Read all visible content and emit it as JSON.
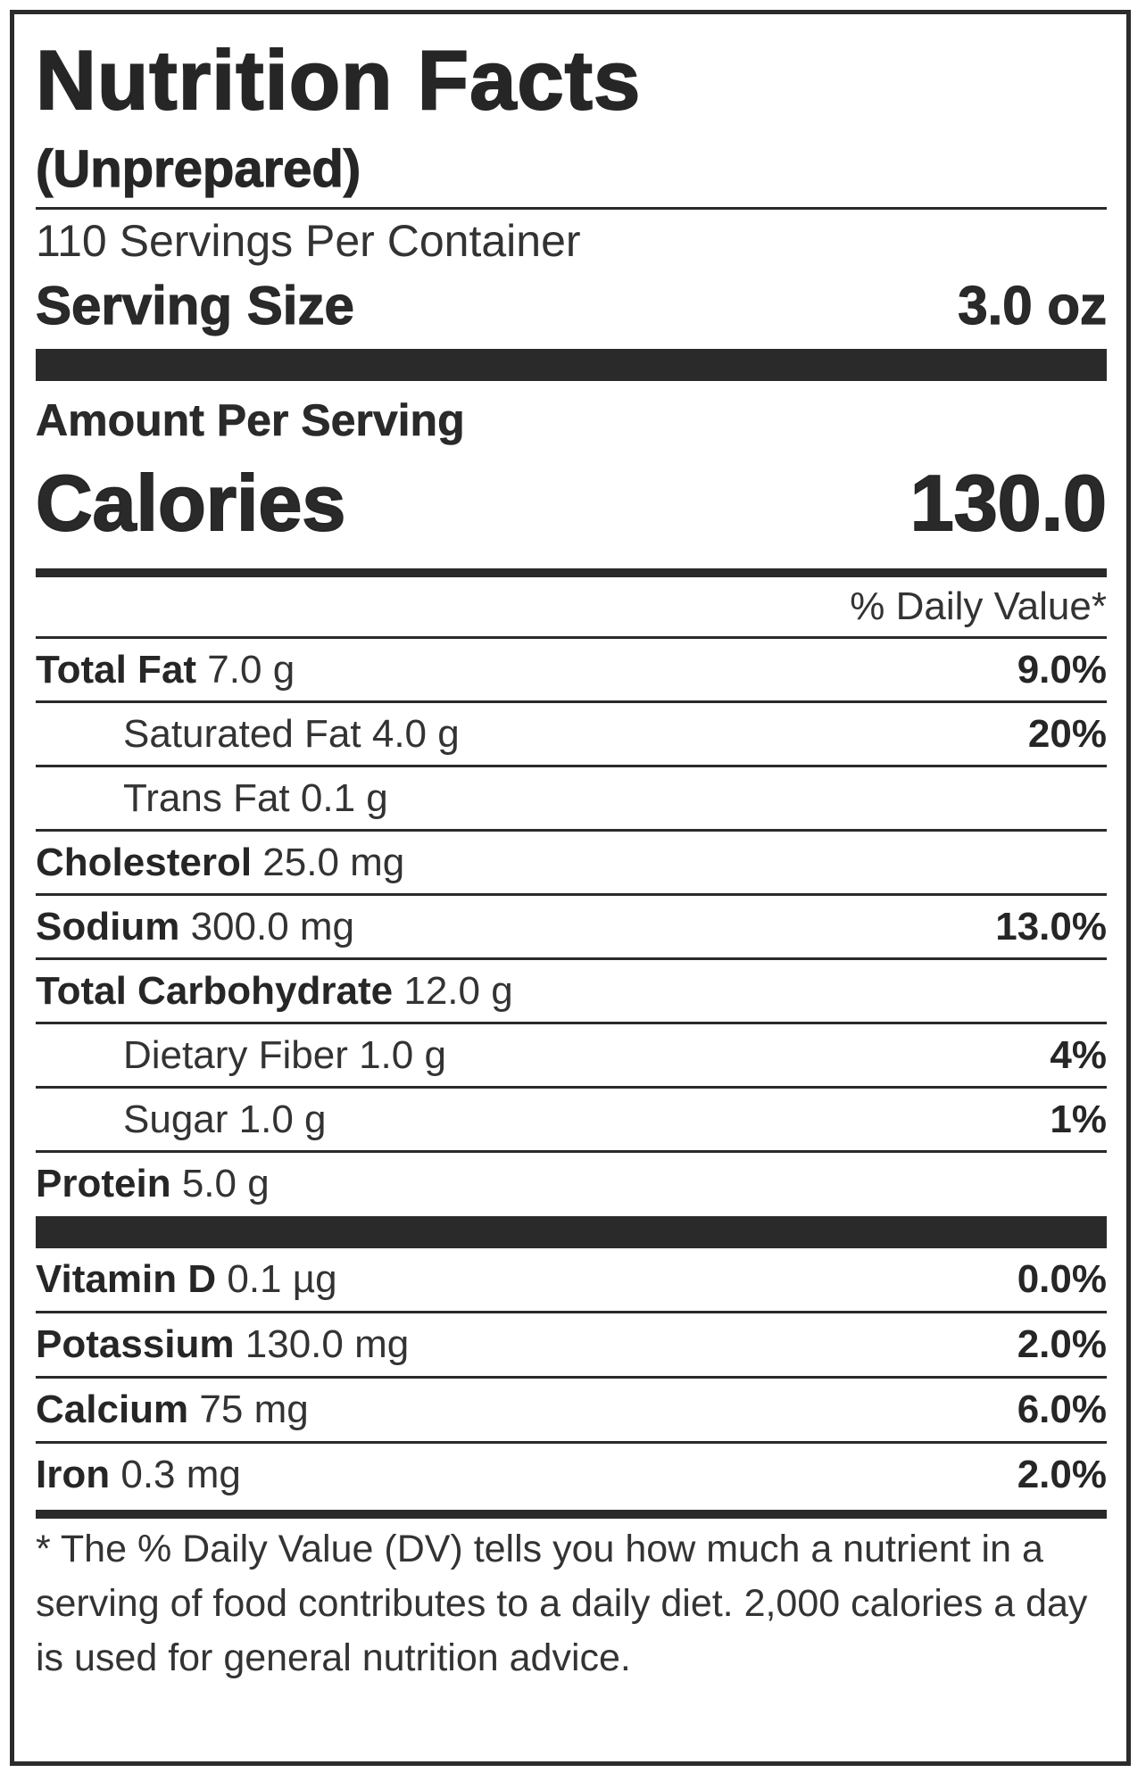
{
  "title": "Nutrition Facts",
  "subtitle": "(Unprepared)",
  "servings_per_container": "110 Servings Per Container",
  "serving_size": {
    "label": "Serving Size",
    "value": "3.0 oz"
  },
  "amount_per_serving": "Amount Per Serving",
  "calories": {
    "label": "Calories",
    "value": "130.0"
  },
  "daily_value_header": "% Daily Value*",
  "nutrients": [
    {
      "name": "Total Fat",
      "amount": "7.0 g",
      "dv": "9.0%"
    },
    {
      "name": "Saturated Fat",
      "amount": "4.0 g",
      "dv": "20%"
    },
    {
      "name": "Trans Fat",
      "amount": "0.1 g",
      "dv": ""
    },
    {
      "name": "Cholesterol",
      "amount": "25.0 mg",
      "dv": ""
    },
    {
      "name": "Sodium",
      "amount": "300.0 mg",
      "dv": "13.0%"
    },
    {
      "name": "Total Carbohydrate",
      "amount": "12.0 g",
      "dv": ""
    },
    {
      "name": "Dietary Fiber",
      "amount": "1.0 g",
      "dv": "4%"
    },
    {
      "name": "Sugar",
      "amount": "1.0 g",
      "dv": "1%"
    },
    {
      "name": "Protein",
      "amount": "5.0 g",
      "dv": ""
    }
  ],
  "vitamins": [
    {
      "name": "Vitamin D",
      "amount": "0.1 µg",
      "dv": "0.0%"
    },
    {
      "name": "Potassium",
      "amount": "130.0 mg",
      "dv": "2.0%"
    },
    {
      "name": "Calcium",
      "amount": "75 mg",
      "dv": "6.0%"
    },
    {
      "name": "Iron",
      "amount": "0.3 mg",
      "dv": "2.0%"
    }
  ],
  "footnote": "* The % Daily Value (DV) tells you how much a nutrient in a serving of food contributes to a daily diet. 2,000 calories a day is used for general nutrition advice."
}
